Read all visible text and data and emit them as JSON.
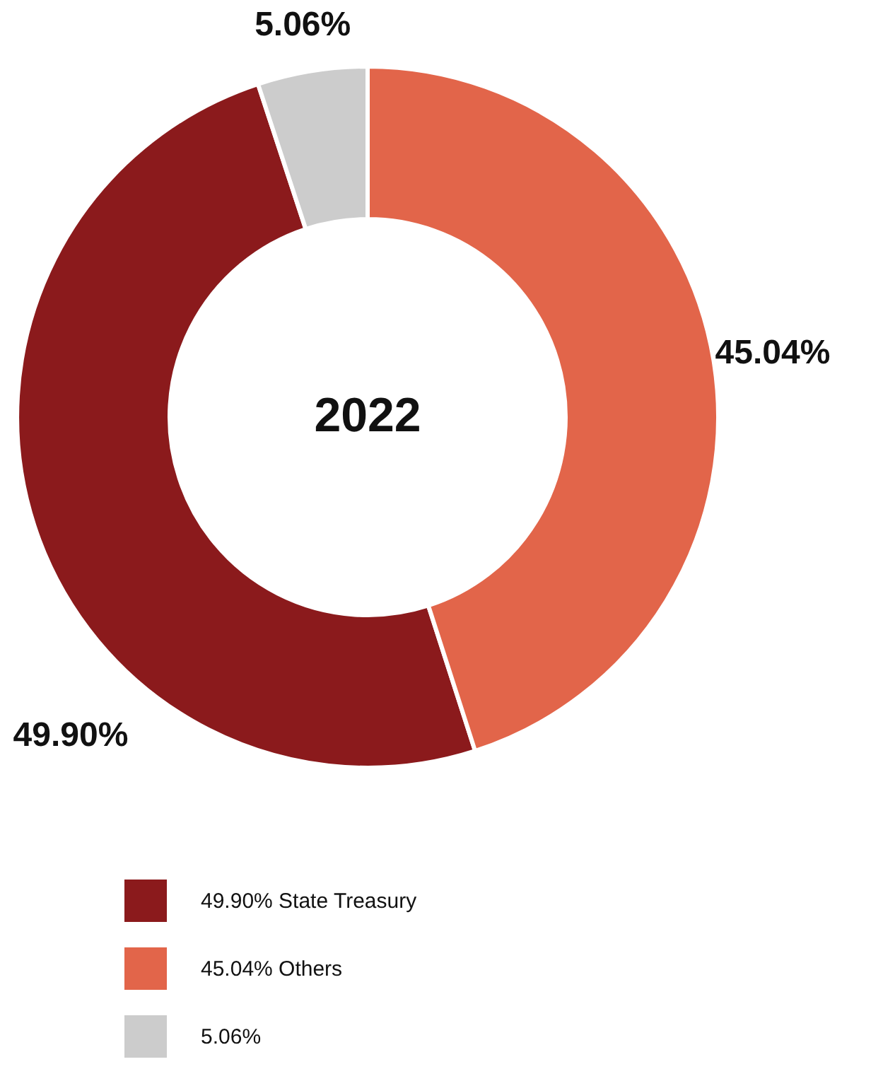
{
  "chart_data": {
    "type": "donut",
    "categories": [
      "49.90% State Treasury",
      "45.04% Others",
      "5.06%"
    ],
    "values": [
      49.9,
      45.04,
      5.06
    ],
    "colors": [
      "#8b1a1c",
      "#e2654a",
      "#cccccc"
    ],
    "value_labels": [
      "49.90%",
      "45.04%",
      "5.06%"
    ],
    "annotations": [
      "2022"
    ],
    "legend": "bottom"
  }
}
